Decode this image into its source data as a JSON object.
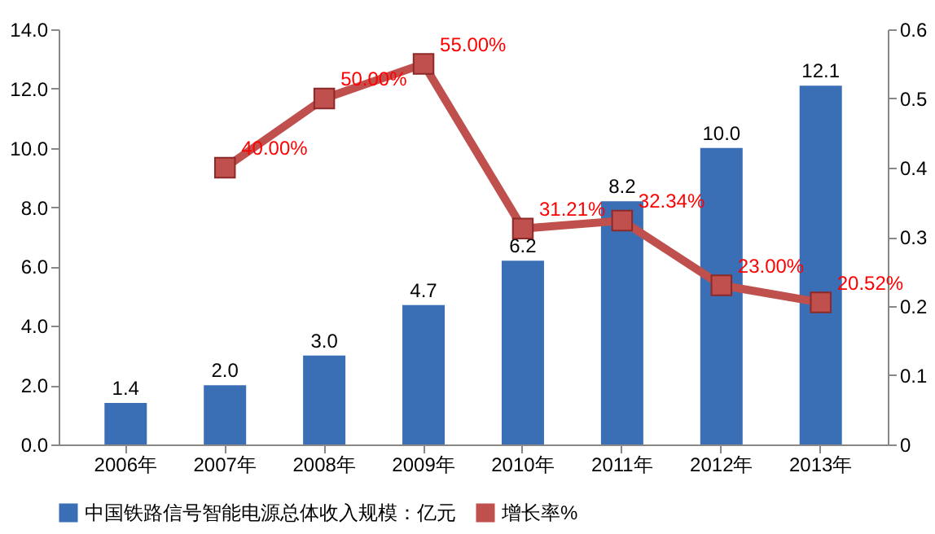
{
  "chart_data": {
    "type": "bar",
    "categories": [
      "2006年",
      "2007年",
      "2008年",
      "2009年",
      "2010年",
      "2011年",
      "2012年",
      "2013年"
    ],
    "series": [
      {
        "name": "中国铁路信号智能电源总体收入规模：亿元",
        "color": "#3a6fb5",
        "values": [
          1.4,
          2.0,
          3.0,
          4.7,
          6.2,
          8.2,
          10.0,
          12.1
        ],
        "value_labels": [
          "1.4",
          "2.0",
          "3.0",
          "4.7",
          "6.2",
          "8.2",
          "10.0",
          "12.1"
        ]
      },
      {
        "name": "增长率%",
        "type": "line",
        "axis": "y2",
        "color": "#c0504d",
        "marker": "square",
        "line_style": "solid",
        "values": [
          null,
          0.4,
          0.5,
          0.55,
          0.3121,
          0.3234,
          0.23,
          0.2052
        ],
        "value_labels": [
          null,
          "40.00%",
          "50.00%",
          "55.00%",
          "31.21%",
          "32.34%",
          "23.00%",
          "20.52%"
        ]
      }
    ],
    "ylim": [
      0,
      14
    ],
    "yticks": [
      {
        "value": 0,
        "label": "0.0"
      },
      {
        "value": 2,
        "label": "2.0"
      },
      {
        "value": 4,
        "label": "4.0"
      },
      {
        "value": 6,
        "label": "6.0"
      },
      {
        "value": 8,
        "label": "8.0"
      },
      {
        "value": 10,
        "label": "10.0"
      },
      {
        "value": 12,
        "label": "12.0"
      },
      {
        "value": 14,
        "label": "14.0"
      }
    ],
    "y2lim": [
      0,
      0.6
    ],
    "y2ticks": [
      {
        "value": 0,
        "label": "0"
      },
      0.1,
      0.2,
      0.3,
      0.4,
      0.5,
      0.6
    ],
    "grid": false,
    "legend": "bottom"
  }
}
